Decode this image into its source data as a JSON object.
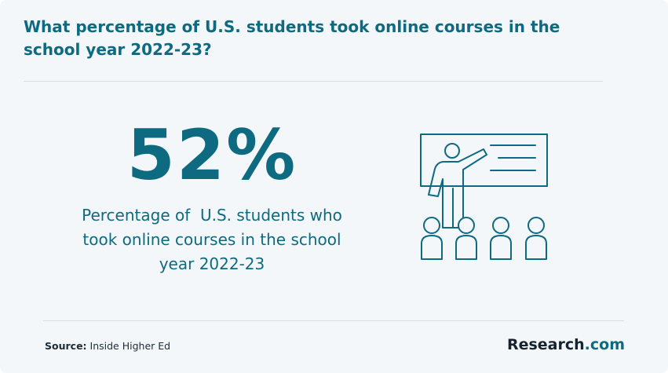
{
  "header": {
    "title": "What percentage of U.S. students took online courses in the school year 2022-23?"
  },
  "stat": {
    "value": "52%",
    "description": "Percentage of  U.S. students who took online courses in the school year 2022-23"
  },
  "footer": {
    "source_label": "Source:",
    "source": "Inside Higher Ed",
    "brand": "Research",
    "brand_suffix": ".com"
  }
}
